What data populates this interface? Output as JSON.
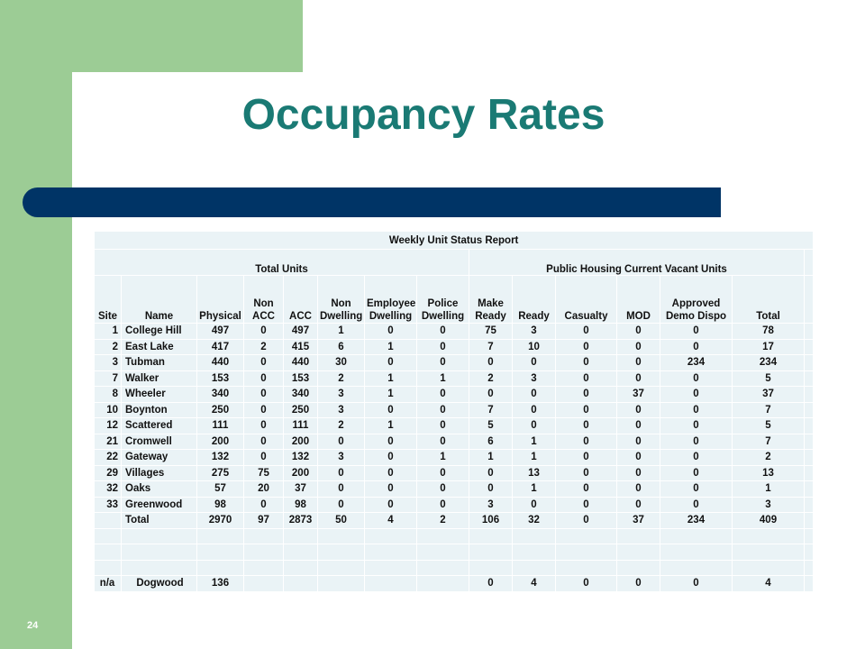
{
  "slide": {
    "title": "Occupancy Rates",
    "page_number": "24",
    "colors": {
      "green": "#9ccc95",
      "navy": "#003466",
      "title": "#1a7a74",
      "table_bg": "#eaf3f6"
    }
  },
  "report": {
    "title": "Weekly Unit Status Report",
    "group_total": "Total  Units",
    "group_vacant": "Public Housing Current Vacant Units",
    "headers": [
      "Site",
      "Name",
      "Physical",
      "Non ACC",
      "ACC",
      "Non Dwelling",
      "Employee Dwelling",
      "Police Dwelling",
      "Make Ready",
      "Ready",
      "Casualty",
      "MOD",
      "Approved Demo Dispo",
      "Total"
    ],
    "rows": [
      [
        "1",
        "College Hill",
        "497",
        "0",
        "497",
        "1",
        "0",
        "0",
        "75",
        "3",
        "0",
        "0",
        "0",
        "78"
      ],
      [
        "2",
        "East Lake",
        "417",
        "2",
        "415",
        "6",
        "1",
        "0",
        "7",
        "10",
        "0",
        "0",
        "0",
        "17"
      ],
      [
        "3",
        "Tubman",
        "440",
        "0",
        "440",
        "30",
        "0",
        "0",
        "0",
        "0",
        "0",
        "0",
        "234",
        "234"
      ],
      [
        "7",
        "Walker",
        "153",
        "0",
        "153",
        "2",
        "1",
        "1",
        "2",
        "3",
        "0",
        "0",
        "0",
        "5"
      ],
      [
        "8",
        "Wheeler",
        "340",
        "0",
        "340",
        "3",
        "1",
        "0",
        "0",
        "0",
        "0",
        "37",
        "0",
        "37"
      ],
      [
        "10",
        "Boynton",
        "250",
        "0",
        "250",
        "3",
        "0",
        "0",
        "7",
        "0",
        "0",
        "0",
        "0",
        "7"
      ],
      [
        "12",
        "Scattered",
        "111",
        "0",
        "111",
        "2",
        "1",
        "0",
        "5",
        "0",
        "0",
        "0",
        "0",
        "5"
      ],
      [
        "21",
        "Cromwell",
        "200",
        "0",
        "200",
        "0",
        "0",
        "0",
        "6",
        "1",
        "0",
        "0",
        "0",
        "7"
      ],
      [
        "22",
        "Gateway",
        "132",
        "0",
        "132",
        "3",
        "0",
        "1",
        "1",
        "1",
        "0",
        "0",
        "0",
        "2"
      ],
      [
        "29",
        "Villages",
        "275",
        "75",
        "200",
        "0",
        "0",
        "0",
        "0",
        "13",
        "0",
        "0",
        "0",
        "13"
      ],
      [
        "32",
        "Oaks",
        "57",
        "20",
        "37",
        "0",
        "0",
        "0",
        "0",
        "1",
        "0",
        "0",
        "0",
        "1"
      ],
      [
        "33",
        "Greenwood",
        "98",
        "0",
        "98",
        "0",
        "0",
        "0",
        "3",
        "0",
        "0",
        "0",
        "0",
        "3"
      ]
    ],
    "total_row": [
      "",
      "Total",
      "2970",
      "97",
      "2873",
      "50",
      "4",
      "2",
      "106",
      "32",
      "0",
      "37",
      "234",
      "409"
    ],
    "extra_row": [
      "n/a",
      "Dogwood",
      "136",
      "",
      "",
      "",
      "",
      "",
      "0",
      "4",
      "0",
      "0",
      "0",
      "4"
    ]
  }
}
